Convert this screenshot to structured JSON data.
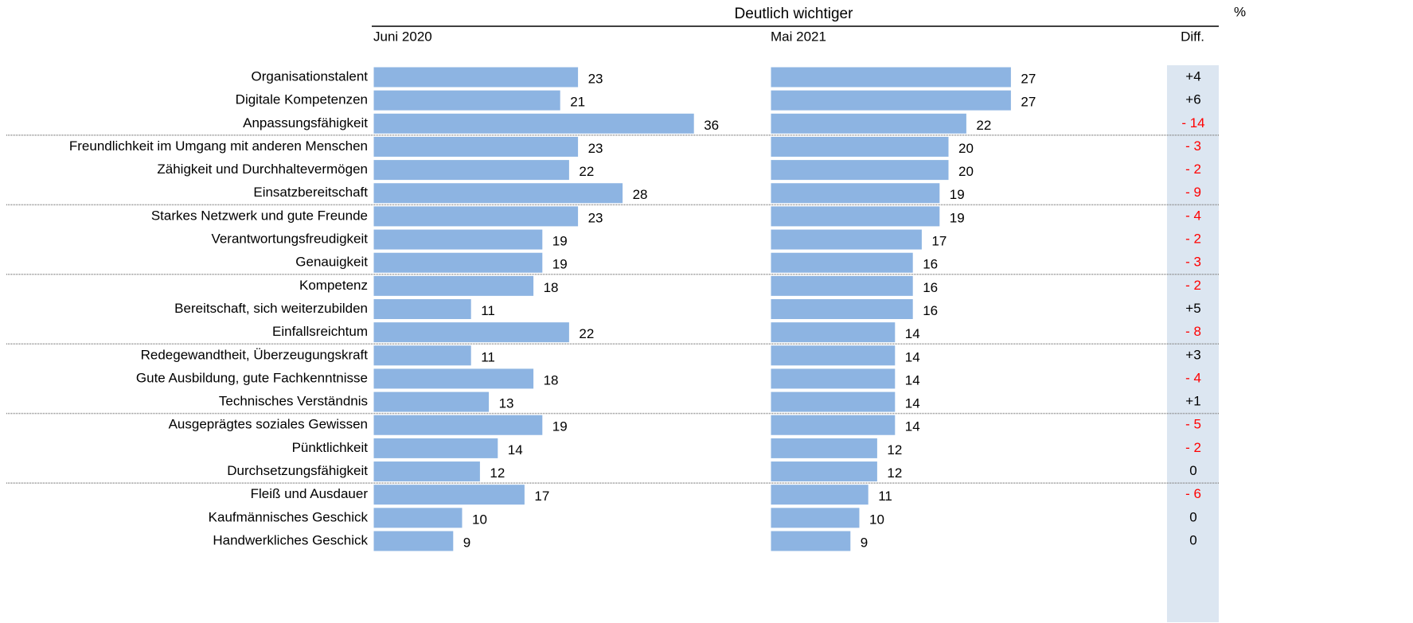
{
  "chart_data": {
    "type": "bar",
    "title": "Deutlich wichtiger",
    "unit": "%",
    "categories": [
      "Organisationstalent",
      "Digitale Kompetenzen",
      "Anpassungsfähigkeit",
      "Freundlichkeit im Umgang mit anderen Menschen",
      "Zähigkeit und Durchhaltevermögen",
      "Einsatzbereitschaft",
      "Starkes Netzwerk und gute Freunde",
      "Verantwortungsfreudigkeit",
      "Genauigkeit",
      "Kompetenz",
      "Bereitschaft, sich weiterzubilden",
      "Einfallsreichtum",
      "Redegewandtheit, Überzeugungskraft",
      "Gute Ausbildung, gute Fachkenntnisse",
      "Technisches Verständnis",
      "Ausgeprägtes soziales Gewissen",
      "Pünktlichkeit",
      "Durchsetzungsfähigkeit",
      "Fleiß und Ausdauer",
      "Kaufmännisches Geschick",
      "Handwerkliches Geschick"
    ],
    "xlim": [
      0,
      40
    ],
    "series": [
      {
        "name": "Juni 2020",
        "color": "#8db4e2",
        "values": [
          23,
          21,
          36,
          23,
          22,
          28,
          23,
          19,
          19,
          18,
          11,
          22,
          11,
          18,
          13,
          19,
          14,
          12,
          17,
          10,
          9
        ]
      },
      {
        "name": "Mai 2021",
        "color": "#8db4e2",
        "values": [
          27,
          27,
          22,
          20,
          20,
          19,
          19,
          17,
          16,
          16,
          16,
          14,
          14,
          14,
          14,
          14,
          12,
          12,
          11,
          10,
          9
        ]
      }
    ],
    "diff": {
      "name": "Diff.",
      "values": [
        4,
        6,
        -14,
        -3,
        -2,
        -9,
        -4,
        -2,
        -3,
        -2,
        5,
        -8,
        3,
        -4,
        1,
        -5,
        -2,
        0,
        -6,
        0,
        0
      ],
      "value_labels": [
        "+4",
        "+6",
        "- 14",
        "- 3",
        "- 2",
        "- 9",
        "- 4",
        "- 2",
        "- 3",
        "- 2",
        "+5",
        "- 8",
        "+3",
        "- 4",
        "+1",
        "- 5",
        "- 2",
        "0",
        "- 6",
        "0",
        "0"
      ]
    }
  }
}
